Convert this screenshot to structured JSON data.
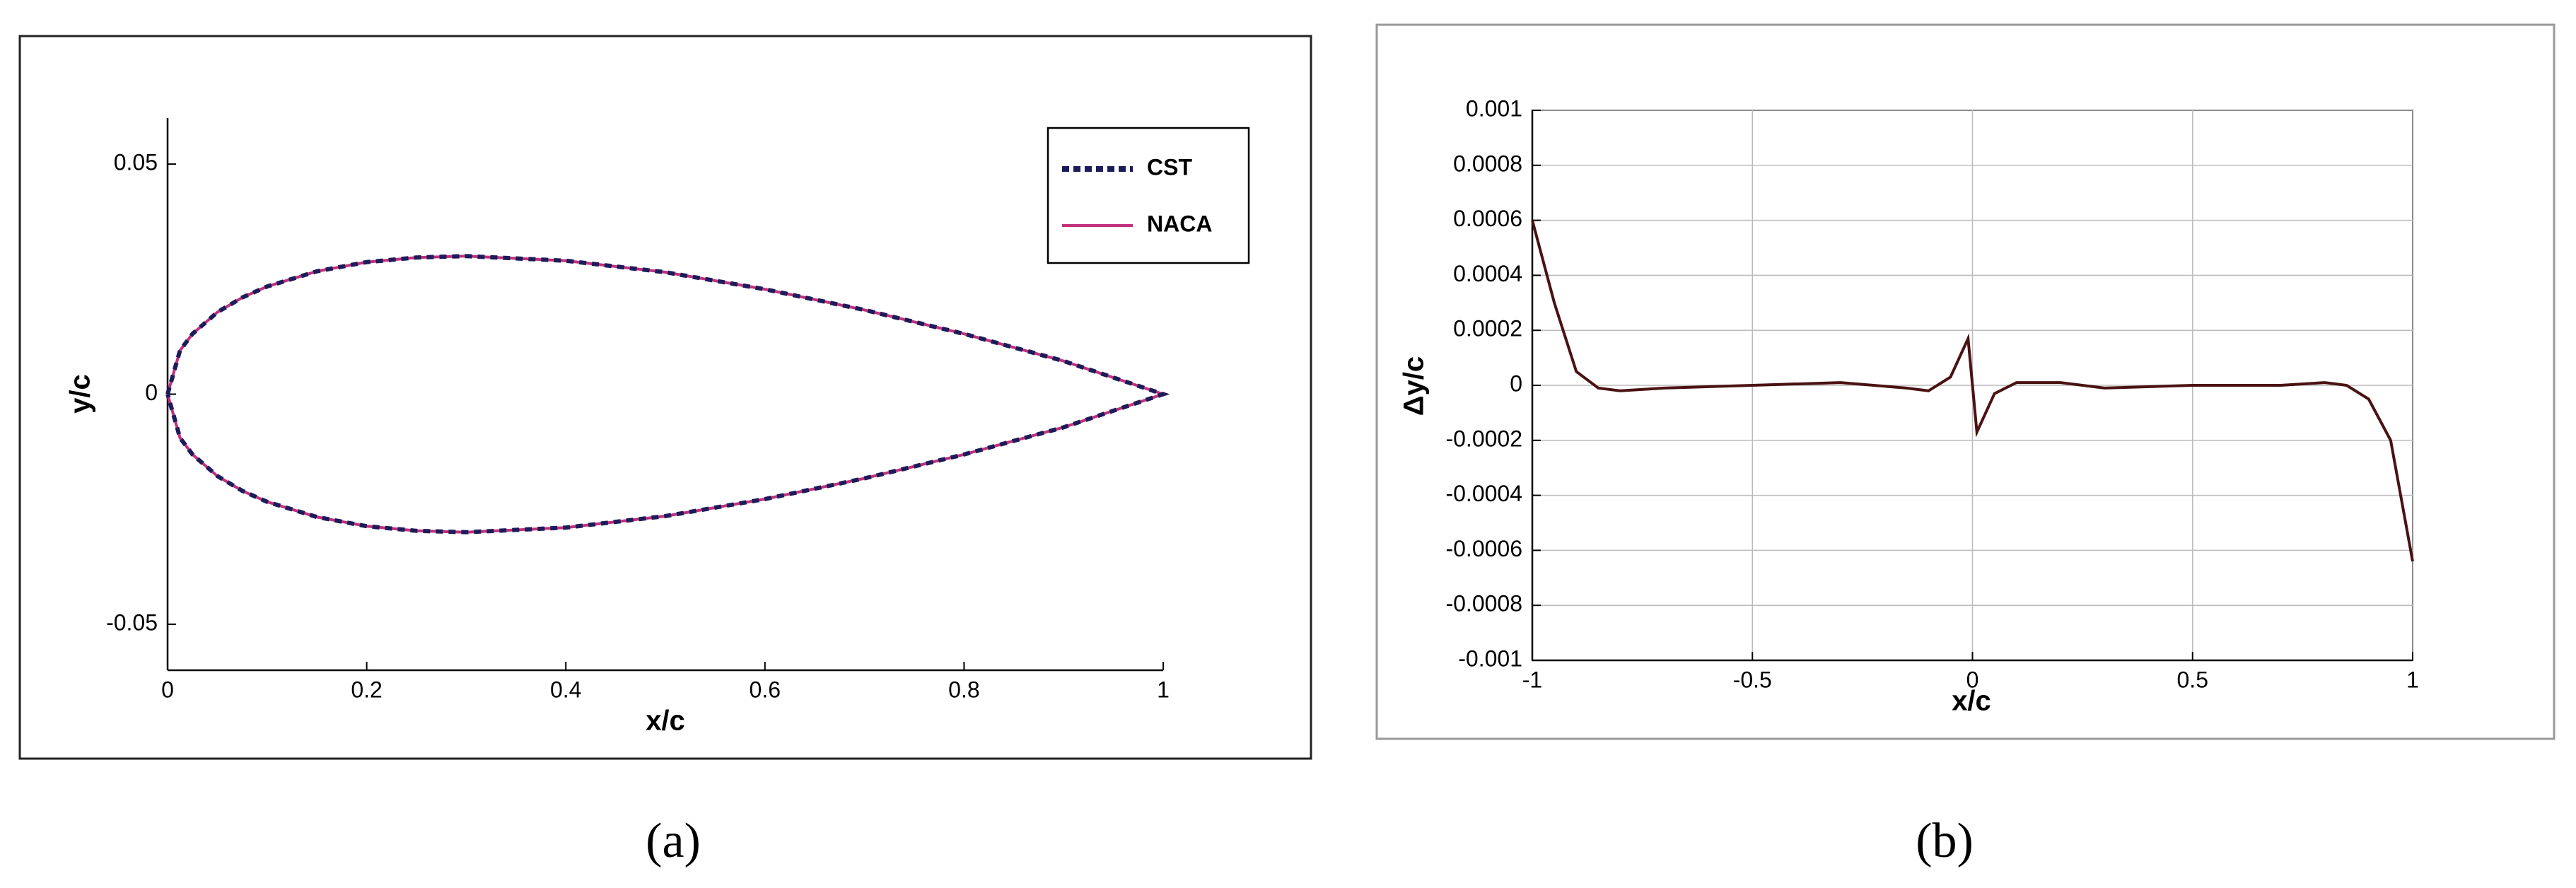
{
  "chart_data": [
    {
      "type": "line",
      "caption": "(a)",
      "xlabel": "x/c",
      "ylabel": "y/c",
      "x": [
        0,
        0.0125,
        0.025,
        0.05,
        0.075,
        0.1,
        0.15,
        0.2,
        0.25,
        0.3,
        0.4,
        0.5,
        0.6,
        0.7,
        0.8,
        0.9,
        1,
        0.9,
        0.8,
        0.7,
        0.6,
        0.5,
        0.4,
        0.3,
        0.25,
        0.2,
        0.15,
        0.1,
        0.075,
        0.05,
        0.025,
        0.0125,
        0
      ],
      "series": [
        {
          "name": "CST",
          "color": "#1c1c5a",
          "style": "dashed",
          "values": [
            0,
            0.0095,
            0.0131,
            0.0178,
            0.021,
            0.0234,
            0.0267,
            0.0287,
            0.0297,
            0.03,
            0.029,
            0.0265,
            0.0228,
            0.0183,
            0.0131,
            0.0072,
            0,
            -0.0072,
            -0.0131,
            -0.0183,
            -0.0228,
            -0.0265,
            -0.029,
            -0.03,
            -0.0297,
            -0.0287,
            -0.0267,
            -0.0234,
            -0.021,
            -0.0178,
            -0.0131,
            -0.0095,
            0
          ]
        },
        {
          "name": "NACA",
          "color": "#c2307c",
          "style": "solid",
          "values": [
            0,
            0.0095,
            0.0131,
            0.0178,
            0.021,
            0.0234,
            0.0267,
            0.0287,
            0.0297,
            0.03,
            0.029,
            0.0265,
            0.0228,
            0.0183,
            0.0131,
            0.0072,
            0,
            -0.0072,
            -0.0131,
            -0.0183,
            -0.0228,
            -0.0265,
            -0.029,
            -0.03,
            -0.0297,
            -0.0287,
            -0.0267,
            -0.0234,
            -0.021,
            -0.0178,
            -0.0131,
            -0.0095,
            0
          ]
        }
      ],
      "xlim": [
        0,
        1
      ],
      "ylim": [
        -0.06,
        0.06
      ],
      "xticks": [
        0,
        0.2,
        0.4,
        0.6,
        0.8,
        1
      ],
      "yticks": [
        -0.05,
        0,
        0.05
      ],
      "grid": false,
      "legend": "upper right"
    },
    {
      "type": "line",
      "caption": "(b)",
      "xlabel": "x/c",
      "ylabel": "Δy/c",
      "x": [
        -1,
        -0.95,
        -0.9,
        -0.85,
        -0.8,
        -0.7,
        -0.5,
        -0.3,
        -0.15,
        -0.1,
        -0.05,
        -0.01,
        0.01,
        0.05,
        0.1,
        0.2,
        0.3,
        0.5,
        0.7,
        0.8,
        0.85,
        0.9,
        0.95,
        1
      ],
      "values": [
        0.0006,
        0.0003,
        5e-05,
        -1e-05,
        -2e-05,
        -1e-05,
        0,
        1e-05,
        -1e-05,
        -2e-05,
        3e-05,
        0.00017,
        -0.00017,
        -3e-05,
        1e-05,
        1e-05,
        -1e-05,
        0,
        0,
        1e-05,
        0,
        -5e-05,
        -0.0002,
        -0.00064
      ],
      "color": "#4a1212",
      "xlim": [
        -1,
        1
      ],
      "ylim": [
        -0.001,
        0.001
      ],
      "xticks": [
        -1,
        -0.5,
        0,
        0.5,
        1
      ],
      "yticks": [
        -0.001,
        -0.0008,
        -0.0006,
        -0.0004,
        -0.0002,
        0,
        0.0002,
        0.0004,
        0.0006,
        0.0008,
        0.001
      ],
      "grid": true
    }
  ]
}
